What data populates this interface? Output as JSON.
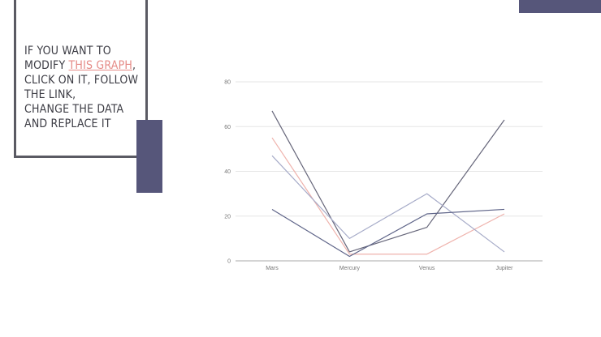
{
  "note": {
    "prefix": "IF YOU WANT TO",
    "line2_before": "MODIFY ",
    "link_text": "THIS GRAPH",
    "line2_after": ",",
    "line3": "CLICK ON IT, FOLLOW",
    "line4": "THE LINK,",
    "line5": "CHANGE THE DATA",
    "line6": "AND REPLACE IT"
  },
  "colors": {
    "frame": "#5a5a63",
    "accent_block": "#56567a",
    "link": "#e58a86",
    "text": "#3c3c44"
  },
  "chart_data": {
    "type": "line",
    "categories": [
      "Mars",
      "Mercury",
      "Venus",
      "Jupiter"
    ],
    "ylim": [
      0,
      80
    ],
    "yticks": [
      0,
      20,
      40,
      60,
      80
    ],
    "grid": true,
    "series": [
      {
        "values": [
          67,
          4,
          15,
          63
        ],
        "color": "#66667a"
      },
      {
        "values": [
          55,
          3,
          3,
          21
        ],
        "color": "#efb3ad"
      },
      {
        "values": [
          47,
          10,
          30,
          4
        ],
        "color": "#a6abc8"
      },
      {
        "values": [
          23,
          2,
          21,
          23
        ],
        "color": "#5e6488"
      }
    ]
  }
}
